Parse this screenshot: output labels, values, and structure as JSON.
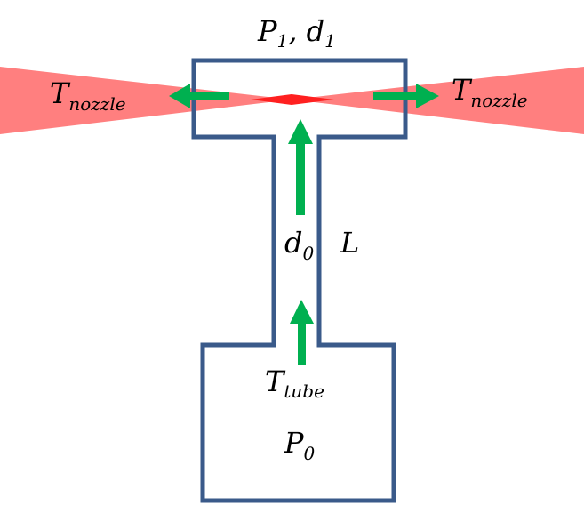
{
  "labels": {
    "top": {
      "main": "P",
      "sub1": "1",
      "sep": ", d",
      "sub2": "1"
    },
    "nozzle_left": {
      "main": "T",
      "sub": "nozzle"
    },
    "nozzle_right": {
      "main": "T",
      "sub": "nozzle"
    },
    "tube_diameter": {
      "main": "d",
      "sub": "0"
    },
    "tube_length": {
      "main": "L"
    },
    "tube_temp": {
      "main": "T",
      "sub": "tube"
    },
    "reservoir_pressure": {
      "main": "P",
      "sub": "0"
    }
  },
  "colors": {
    "outline": "#3a5a8a",
    "arrow": "#00b050",
    "beam": "#ff7f7f",
    "beam_center": "#ff2020"
  }
}
